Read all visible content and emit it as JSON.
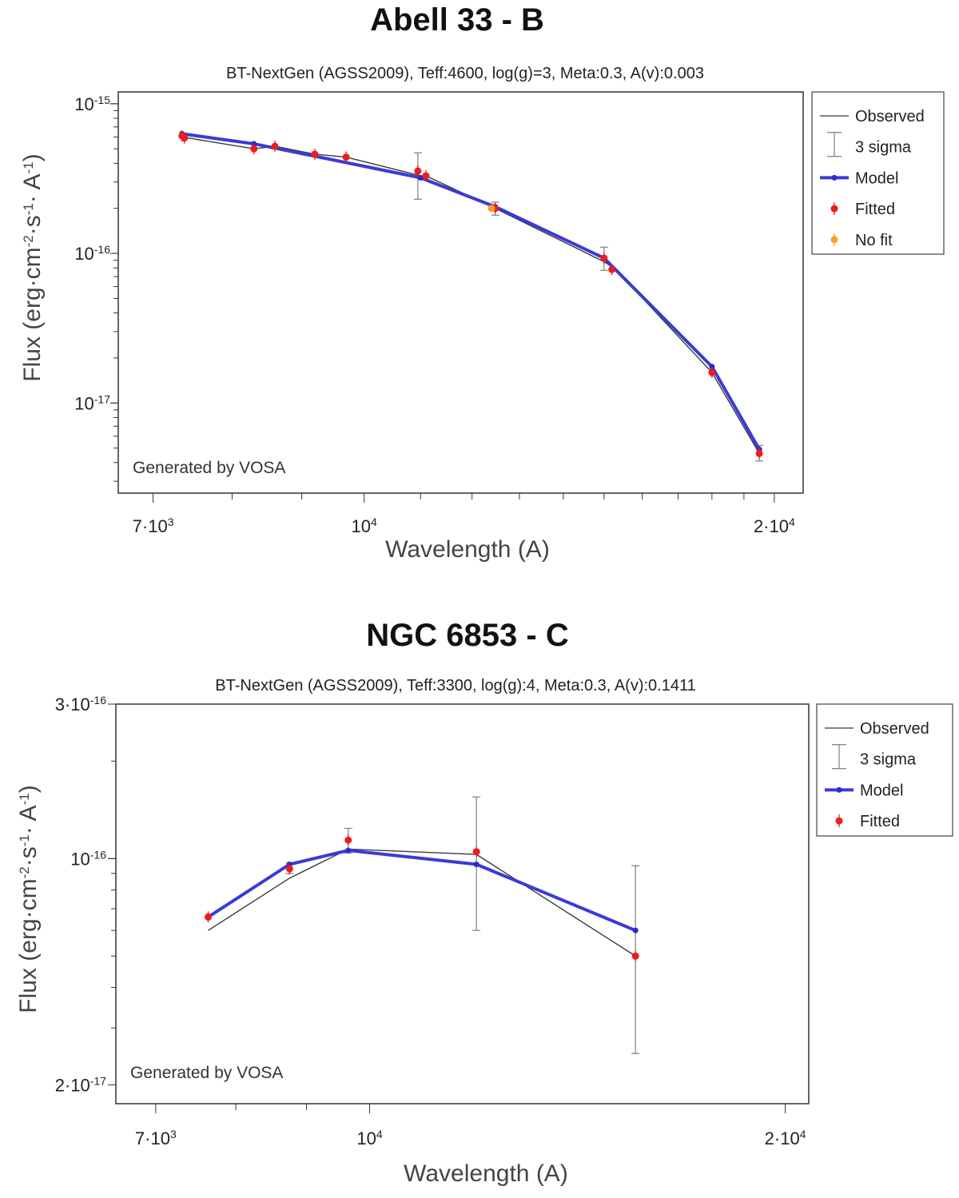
{
  "chart_data": [
    {
      "type": "line",
      "scale": "log-log",
      "title": "Abell 33 - B",
      "subtitle": "BT-NextGen (AGSS2009), Teff:4600, log(g)=3, Meta:0.3, A(v):0.003",
      "xlabel": "Wavelength (A)",
      "ylabel_parts": {
        "a": "Flux (erg·cm",
        "b": "-2",
        "c": "·s",
        "d": "-1",
        "e": "· A",
        "f": "-1",
        "g": ")"
      },
      "watermark": "Generated by VOSA",
      "xlim": [
        6600,
        21000
      ],
      "ylim": [
        2.5e-18,
        1.2e-15
      ],
      "x_ticks": [
        {
          "value": 7000,
          "base": "7·10",
          "exp": "3"
        },
        {
          "value": 10000,
          "base": "10",
          "exp": "4"
        },
        {
          "value": 20000,
          "base": "2·10",
          "exp": "4"
        }
      ],
      "x_minor": [
        8000,
        9000,
        11000,
        12000,
        13000,
        14000,
        15000,
        16000,
        17000,
        18000,
        19000
      ],
      "y_ticks": [
        {
          "value": 1e-15,
          "base": "10",
          "exp": "-15"
        },
        {
          "value": 1e-16,
          "base": "10",
          "exp": "-16"
        },
        {
          "value": 1e-17,
          "base": "10",
          "exp": "-17"
        }
      ],
      "legend": [
        {
          "kind": "observed",
          "label": "Observed"
        },
        {
          "kind": "sigma",
          "label": "3 sigma"
        },
        {
          "kind": "model",
          "label": "Model"
        },
        {
          "kind": "fitted",
          "label": "Fitted"
        },
        {
          "kind": "nofit",
          "label": "No fit"
        }
      ],
      "series": [
        {
          "name": "Observed",
          "x": [
            7350,
            8300,
            8600,
            9200,
            9700,
            11000,
            11100,
            12480,
            15000,
            15300,
            18000,
            19500
          ],
          "y": [
            6e-16,
            5e-16,
            5.2e-16,
            4.6e-16,
            4.4e-16,
            3.3e-16,
            3.3e-16,
            2e-16,
            8.8e-17,
            7.8e-17,
            1.6e-17,
            4.6e-18
          ]
        },
        {
          "name": "Model",
          "x": [
            7350,
            8300,
            11000,
            12480,
            15000,
            18000,
            19500
          ],
          "y": [
            6.3e-16,
            5.4e-16,
            3.2e-16,
            2.05e-16,
            9.3e-17,
            1.75e-17,
            4.9e-18
          ]
        },
        {
          "name": "Fitted",
          "x": [
            7350,
            7380,
            8300,
            8600,
            9200,
            9700,
            10950,
            11100,
            12480,
            15000,
            15200,
            18000,
            19500
          ],
          "y": [
            6.1e-16,
            5.9e-16,
            5e-16,
            5.2e-16,
            4.6e-16,
            4.4e-16,
            3.55e-16,
            3.3e-16,
            2e-16,
            9.3e-17,
            7.8e-17,
            1.6e-17,
            4.6e-18
          ]
        },
        {
          "name": "No fit",
          "x": [
            12400
          ],
          "y": [
            2e-16
          ]
        }
      ],
      "error_bars": [
        {
          "x": 10950,
          "y": 3.5e-16,
          "low": 2.3e-16,
          "high": 4.7e-16
        },
        {
          "x": 12480,
          "y": 2e-16,
          "low": 1.8e-16,
          "high": 2.2e-16
        },
        {
          "x": 15000,
          "y": 9.3e-17,
          "low": 7.7e-17,
          "high": 1.1e-16
        },
        {
          "x": 19500,
          "y": 4.6e-18,
          "low": 4.1e-18,
          "high": 5.2e-18
        }
      ]
    },
    {
      "type": "line",
      "scale": "log-log",
      "title": "NGC 6853 - C",
      "subtitle": "BT-NextGen (AGSS2009), Teff:3300, log(g):4, Meta:0.3, A(v):0.1411",
      "xlabel": "Wavelength (A)",
      "ylabel_parts": {
        "a": "Flux (erg·cm",
        "b": "-2",
        "c": "·s",
        "d": "-1",
        "e": "· A",
        "f": "-1",
        "g": ")"
      },
      "watermark": "Generated by VOSA",
      "xlim": [
        6550,
        20800
      ],
      "ylim": [
        1.75e-17,
        3e-16
      ],
      "x_ticks": [
        {
          "value": 7000,
          "base": "7·10",
          "exp": "3"
        },
        {
          "value": 10000,
          "base": "10",
          "exp": "4"
        },
        {
          "value": 20000,
          "base": "2·10",
          "exp": "4"
        }
      ],
      "x_minor": [
        8000,
        9000
      ],
      "y_ticks": [
        {
          "value": 3e-16,
          "base": "3·10",
          "exp": "-16"
        },
        {
          "value": 1e-16,
          "base": "10",
          "exp": "-16"
        },
        {
          "value": 2e-17,
          "base": "2·10",
          "exp": "-17"
        }
      ],
      "legend": [
        {
          "kind": "observed",
          "label": "Observed"
        },
        {
          "kind": "sigma",
          "label": "3 sigma"
        },
        {
          "kind": "model",
          "label": "Model"
        },
        {
          "kind": "fitted",
          "label": "Fitted"
        }
      ],
      "series": [
        {
          "name": "Observed",
          "x": [
            7640,
            8750,
            9650,
            11950,
            15580
          ],
          "y": [
            6e-17,
            8.7e-17,
            1.07e-16,
            1.03e-16,
            5e-17
          ]
        },
        {
          "name": "Model",
          "x": [
            7640,
            8750,
            9650,
            11950,
            15580
          ],
          "y": [
            6.6e-17,
            9.6e-17,
            1.06e-16,
            9.6e-17,
            6e-17
          ]
        },
        {
          "name": "Fitted",
          "x": [
            7640,
            8750,
            9650,
            11950,
            15580
          ],
          "y": [
            6.6e-17,
            9.3e-17,
            1.14e-16,
            1.05e-16,
            5e-17
          ]
        }
      ],
      "error_bars": [
        {
          "x": 8750,
          "y": 9.3e-17,
          "low": 9e-17,
          "high": 9.7e-17
        },
        {
          "x": 9650,
          "y": 1.14e-16,
          "low": 1.04e-16,
          "high": 1.24e-16
        },
        {
          "x": 11950,
          "y": 1.05e-16,
          "low": 6e-17,
          "high": 1.55e-16
        },
        {
          "x": 15580,
          "y": 5e-17,
          "low": 2.5e-17,
          "high": 9.5e-17
        }
      ]
    }
  ],
  "colors": {
    "observed": "#3a3a3a",
    "sigma": "#888888",
    "model": "#3a3ad8",
    "model_marker": "#2a2ad0",
    "fitted": "#ee1c1c",
    "nofit": "#ffa020",
    "axis": "#333333",
    "text": "#222222",
    "axis_label": "#444444"
  }
}
